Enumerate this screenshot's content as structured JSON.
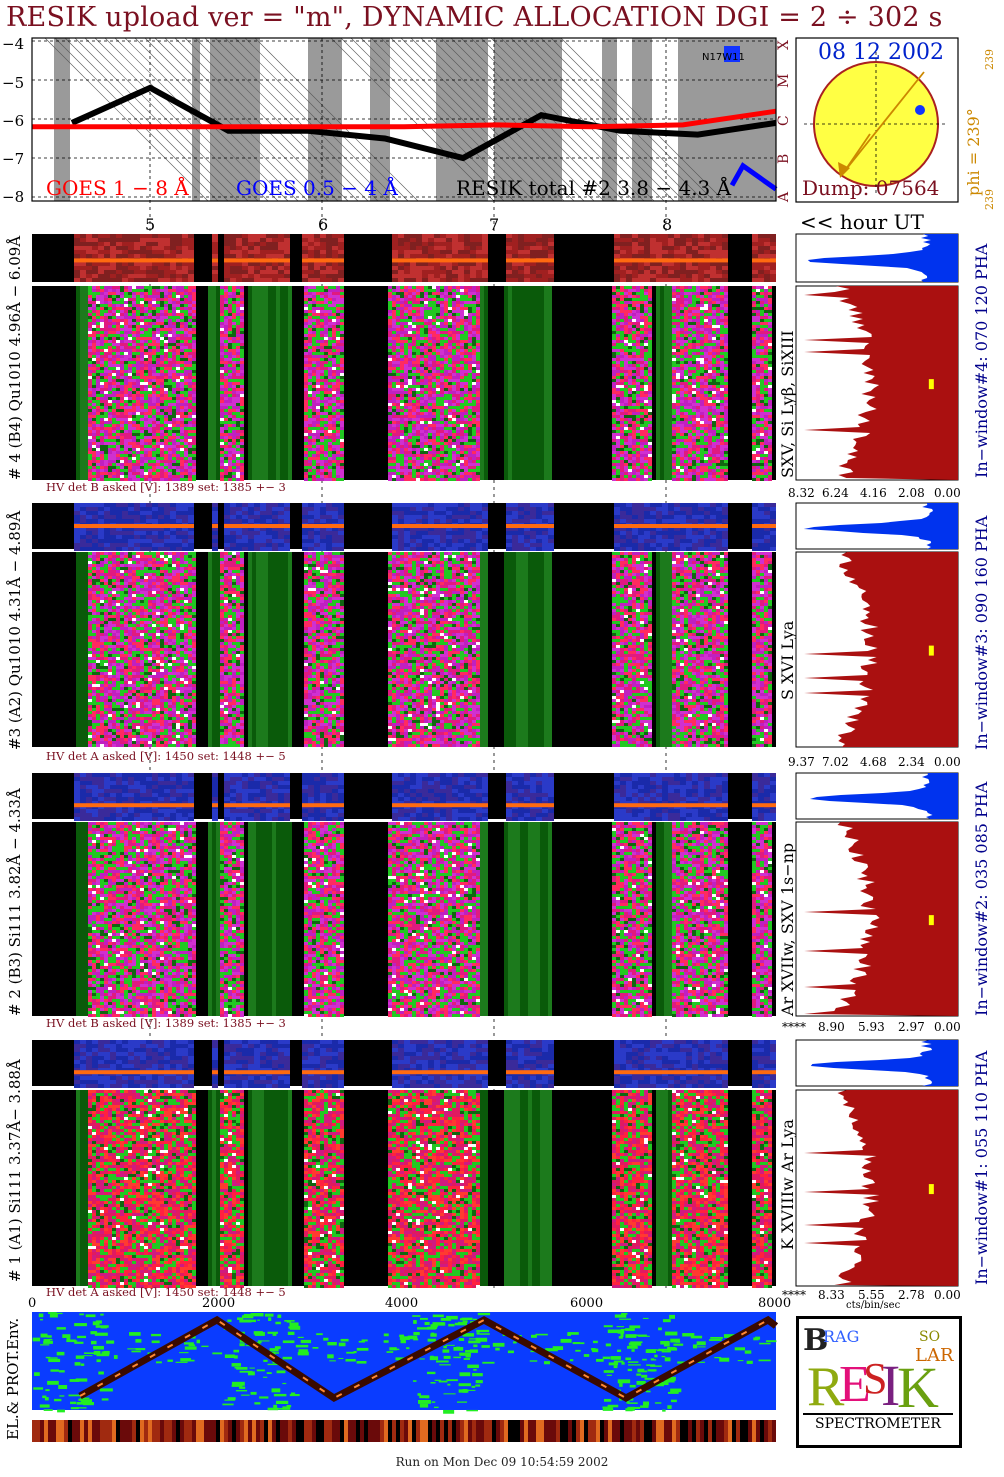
{
  "title": "RESIK upload ver = \"m\", DYNAMIC ALLOCATION  DGI =   2 ÷ 302 s",
  "footer": "Run on Mon Dec 09 10:54:59 2002",
  "colors": {
    "goes_long": "#ff0000",
    "goes_short": "#0000ff",
    "background_grey": "#9a9a9a",
    "spectrum_bg": "#e02060",
    "histogram_fill": "#aa1010",
    "pha_fill": "#0033ee",
    "sun_disc": "#ffff44",
    "title_color": "#7a1020"
  },
  "lightcurve": {
    "yticks": [
      "−4",
      "−5",
      "−6",
      "−7",
      "−8"
    ],
    "goes_long_label": "GOES 1 − 8 Å",
    "goes_short_label": "GOES 0.5 − 4 Å",
    "resik_label": "RESIK total #2  3.8 − 4.3 Å",
    "region_tag": "N17W11",
    "flare_classes": [
      "X",
      "M",
      "C",
      "B",
      "A"
    ]
  },
  "sun": {
    "date": "08 12 2002",
    "dump": "Dump: 07564",
    "phi_label": "phi = 239°",
    "phi_small": "239",
    "phi_bottom": "239"
  },
  "hours": {
    "labels": [
      "5",
      "6",
      "7",
      "8"
    ],
    "axis_label": "<< hour UT"
  },
  "panels": [
    {
      "id": "4",
      "label": "# 4 (B4) Qu1010 4.96Å − 6.09Å",
      "line_label": "SXV, Si Lyβ, SiXIII",
      "window_label": "In−window#4:  070 120 PHA",
      "hv_text": "HV det B asked [V]:  1389 set:  1385  +−    3",
      "hist_ticks": [
        "8.32",
        "6.24",
        "4.16",
        "2.08",
        "0.00"
      ]
    },
    {
      "id": "3",
      "label": "#3 (A2) Qu1010  4.31Å − 4.89Å",
      "line_label": "S XVI Lya",
      "window_label": "In−window#3:  090 160 PHA",
      "hv_text": "HV det A asked [V]:  1450 set:  1448  +−    5",
      "hist_ticks": [
        "9.37",
        "7.02",
        "4.68",
        "2.34",
        "0.00"
      ]
    },
    {
      "id": "2",
      "label": "# 2 (B3) Si111  3.82Å − 4.33Å",
      "line_label": "Ar XVIIw,  SXV 1s−np",
      "window_label": "In−window#2:  035 085 PHA",
      "hv_text": "HV det B asked [V]:  1389 set:  1385  +−    3",
      "hist_ticks": [
        "****",
        "8.90",
        "5.93",
        "2.97",
        "0.00"
      ]
    },
    {
      "id": "1",
      "label": "# 1 (A1) Si111  3.37Å− 3.88Å",
      "line_label": "K XVIIIw  Ar Lya",
      "window_label": "In−window#1:  055 110 PHA",
      "hv_text": "HV det A asked [V]:  1450 set:  1448  +−    5",
      "hist_ticks": [
        "****",
        "8.33",
        "5.55",
        "2.78",
        "0.00"
      ]
    }
  ],
  "x_axis": {
    "ticks": [
      "0",
      "2000",
      "4000",
      "6000",
      "8000"
    ],
    "hist_unit": "cts/bin/sec"
  },
  "env": {
    "label": "EL.& PROT.Env."
  },
  "logo": {
    "letters": "RESIK",
    "subtitle": "SPECTROMETER",
    "corner": [
      "B",
      "RAG",
      "SO",
      "LAR"
    ]
  },
  "chart_data": [
    {
      "type": "line",
      "title": "",
      "xlabel": "<< hour UT",
      "ylabel": "",
      "x_ticks": [
        "5",
        "6",
        "7",
        "8"
      ],
      "ylim": [
        -8,
        -4
      ],
      "series": [
        {
          "name": "GOES 1 − 8 Å",
          "values": [
            -6.2,
            -6.2,
            -6.2,
            -6.2,
            -6.2,
            -6.15,
            -6.2,
            -6.15,
            -5.8
          ]
        },
        {
          "name": "GOES 0.5 − 4 Å",
          "values": [
            -7.7,
            -7.2,
            -7.4,
            -7.6,
            -7.8
          ]
        },
        {
          "name": "RESIK total #2  3.8 − 4.3 Å",
          "values": [
            -6.1,
            -5.2,
            -6.3,
            -6.3,
            -6.5,
            -7.0,
            -5.9,
            -6.3,
            -6.4,
            -6.1
          ]
        }
      ]
    },
    {
      "type": "bar",
      "title": "In−window#4:  070 120 PHA",
      "xlabel": "",
      "x_ticks": [
        "8.32",
        "6.24",
        "4.16",
        "2.08",
        "0.00"
      ]
    },
    {
      "type": "bar",
      "title": "In−window#3:  090 160 PHA",
      "xlabel": "",
      "x_ticks": [
        "9.37",
        "7.02",
        "4.68",
        "2.34",
        "0.00"
      ]
    },
    {
      "type": "bar",
      "title": "In−window#2:  035 085 PHA",
      "xlabel": "",
      "x_ticks": [
        "****",
        "8.90",
        "5.93",
        "2.97",
        "0.00"
      ]
    },
    {
      "type": "bar",
      "title": "In−window#1:  055 110 PHA",
      "xlabel": "cts/bin/sec",
      "x_ticks": [
        "****",
        "8.33",
        "5.55",
        "2.78",
        "0.00"
      ]
    }
  ]
}
